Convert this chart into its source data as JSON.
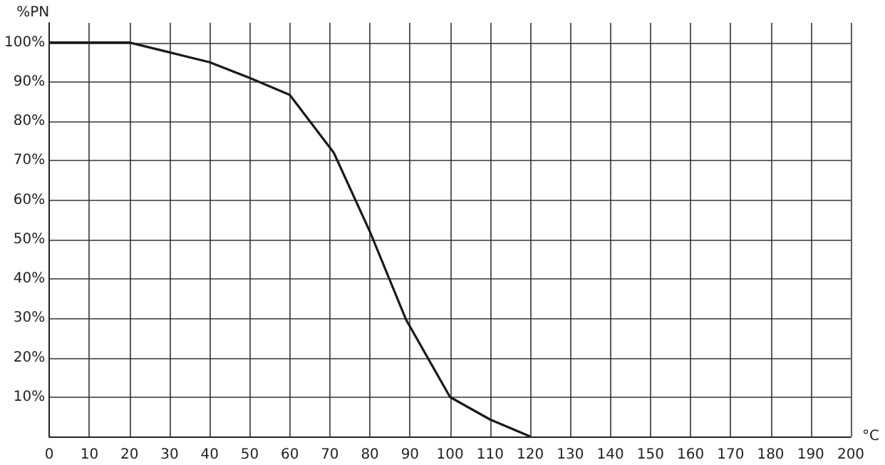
{
  "chart_data": {
    "type": "line",
    "ylabel": "%PN",
    "xlabel": "°C",
    "x": [
      0,
      20,
      30,
      40,
      50,
      60,
      71,
      80,
      89,
      100,
      110,
      120
    ],
    "series": [
      {
        "color": "#1a1a1a",
        "values": [
          100,
          100,
          97.5,
          95,
          91,
          86.7,
          72,
          52,
          29.7,
          10,
          4.3,
          0
        ]
      }
    ],
    "xlim": [
      0,
      200
    ],
    "xticks": [
      0,
      10,
      20,
      30,
      40,
      50,
      60,
      70,
      80,
      90,
      100,
      110,
      120,
      130,
      140,
      150,
      160,
      170,
      180,
      190,
      200
    ],
    "ylim": [
      0,
      105
    ],
    "yticks": [
      {
        "value": 0,
        "label": null
      },
      {
        "value": 10,
        "label": "10%"
      },
      {
        "value": 20,
        "label": "20%"
      },
      {
        "value": 30,
        "label": "30%"
      },
      {
        "value": 40,
        "label": "40%"
      },
      {
        "value": 50,
        "label": "50%"
      },
      {
        "value": 60,
        "label": "60%"
      },
      {
        "value": 70,
        "label": "70%"
      },
      {
        "value": 80,
        "label": "80%"
      },
      {
        "value": 90,
        "label": "90%"
      },
      {
        "value": 100,
        "label": "100%"
      }
    ],
    "grid": true,
    "marker": "none",
    "line_style": "solid"
  }
}
